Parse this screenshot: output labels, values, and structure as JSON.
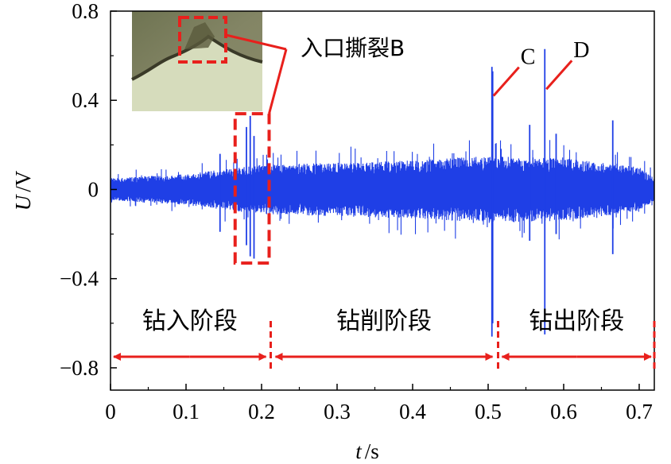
{
  "chart_data": {
    "type": "line",
    "xlabel_var": "t",
    "xlabel_unit": "/s",
    "ylabel_var": "U",
    "ylabel_unit": "/V",
    "xlim": [
      0,
      0.72
    ],
    "ylim": [
      -0.9,
      0.8
    ],
    "x_ticks": [
      "0",
      "0.1",
      "0.2",
      "0.3",
      "0.4",
      "0.5",
      "0.6",
      "0.7"
    ],
    "y_ticks": [
      "0.8",
      "0.4",
      "0",
      "−0.4",
      "−0.8"
    ],
    "series": [
      {
        "color": "#1f3fe6",
        "envelope": [
          {
            "t": 0.0,
            "amp": 0.05
          },
          {
            "t": 0.1,
            "amp": 0.07
          },
          {
            "t": 0.15,
            "amp": 0.09
          },
          {
            "t": 0.2,
            "amp": 0.11
          },
          {
            "t": 0.3,
            "amp": 0.12
          },
          {
            "t": 0.4,
            "amp": 0.13
          },
          {
            "t": 0.5,
            "amp": 0.15
          },
          {
            "t": 0.6,
            "amp": 0.14
          },
          {
            "t": 0.7,
            "amp": 0.1
          },
          {
            "t": 0.72,
            "amp": 0.05
          }
        ],
        "spikes": [
          {
            "t": 0.145,
            "max": 0.16,
            "min": -0.19
          },
          {
            "t": 0.18,
            "max": 0.28,
            "min": -0.25
          },
          {
            "t": 0.185,
            "max": 0.33,
            "min": -0.3
          },
          {
            "t": 0.19,
            "max": 0.24,
            "min": -0.31
          },
          {
            "t": 0.505,
            "max": 0.55,
            "min": -0.66
          },
          {
            "t": 0.506,
            "max": 0.53,
            "min": -0.6
          },
          {
            "t": 0.555,
            "max": 0.29,
            "min": -0.23
          },
          {
            "t": 0.575,
            "max": 0.63,
            "min": -0.65
          },
          {
            "t": 0.59,
            "max": 0.25,
            "min": -0.2
          },
          {
            "t": 0.665,
            "max": 0.31,
            "min": -0.29
          }
        ]
      }
    ],
    "stages": [
      {
        "label": "钻入阶段",
        "from": 0.0,
        "to": 0.21
      },
      {
        "label": "钻削阶段",
        "from": 0.21,
        "to": 0.51
      },
      {
        "label": "钻出阶段",
        "from": 0.51,
        "to": 0.72
      }
    ],
    "annotations": [
      {
        "label": "入口撕裂B",
        "t_from": 0.165,
        "t_to": 0.21,
        "u_from": -0.33,
        "u_to": 0.34
      },
      {
        "label": "C",
        "t": 0.505,
        "u": 0.42
      },
      {
        "label": "D",
        "t": 0.575,
        "u": 0.45
      }
    ],
    "inset": {
      "description_icon": "drill-entry-photo"
    },
    "colors": {
      "signal": "#1f3fe6",
      "annotation": "#e8201c"
    }
  }
}
